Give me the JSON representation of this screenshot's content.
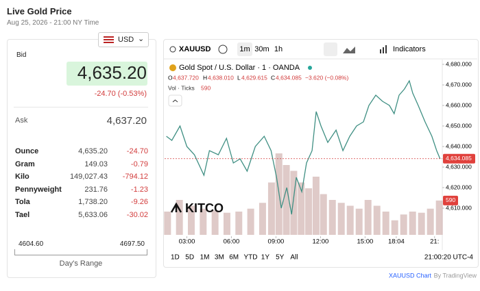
{
  "header": {
    "title": "Live Gold Price",
    "date": "Aug 25, 2026 - 21:00 NY Time"
  },
  "currency": "USD",
  "quote": {
    "bid_label": "Bid",
    "bid": "4,635.20",
    "change": "-24.70 (-0.53%)",
    "ask_label": "Ask",
    "ask": "4,637.20"
  },
  "table": {
    "rows": [
      [
        "Ounce",
        "4,635.20",
        "-24.70"
      ],
      [
        "Gram",
        "149.03",
        "-0.79"
      ],
      [
        "Kilo",
        "149,027.43",
        "-794.12"
      ],
      [
        "Pennyweight",
        "231.76",
        "-1.23"
      ],
      [
        "Tola",
        "1,738.20",
        "-9.26"
      ],
      [
        "Tael",
        "5,633.06",
        "-30.02"
      ]
    ]
  },
  "range": {
    "low": "4604.60",
    "high": "4697.50",
    "label": "Day's Range"
  },
  "toolbar": {
    "symbol": "XAUUSD",
    "intervals": [
      "1m",
      "30m",
      "1h"
    ],
    "indicators": "Indicators"
  },
  "legend": {
    "name": "Gold Spot / U.S. Dollar · 1 · OANDA",
    "o_label": "O",
    "o": "4,637.720",
    "h_label": "H",
    "h": "4,638.010",
    "l_label": "L",
    "l": "4,629.615",
    "c_label": "C",
    "c": "4,634.085",
    "change": "−3.620 (−0.08%)",
    "vol_label": "Vol · Ticks",
    "vol": "590"
  },
  "logo": "KITCO",
  "ranges": [
    "1D",
    "5D",
    "1M",
    "3M",
    "6M",
    "YTD",
    "1Y",
    "5Y",
    "All"
  ],
  "clock": "21:00:20 UTC-4",
  "footer": {
    "link": "XAUUSD Chart",
    "by": "By TradingView"
  },
  "chart_data": {
    "type": "line",
    "color": "#3f8f83",
    "x": [
      1.62,
      1.99,
      2.54,
      3.0,
      3.51,
      4.15,
      4.52,
      5.12,
      5.67,
      6.13,
      6.59,
      7.06,
      7.61,
      8.21,
      8.67,
      9.04,
      9.36,
      9.73,
      10.05,
      10.37,
      10.74,
      11.06,
      11.43,
      11.71,
      12.03,
      12.49,
      13.05,
      13.51,
      13.97,
      14.43,
      14.89,
      15.26,
      15.72,
      16.18,
      16.64,
      16.96,
      17.29,
      17.65,
      17.98,
      18.21,
      18.58,
      19.04,
      19.5,
      19.82,
      20.05
    ],
    "values": [
      4645,
      4643,
      4650,
      4640,
      4636,
      4626,
      4638,
      4636,
      4644,
      4632,
      4634,
      4628,
      4640,
      4645,
      4638,
      4625,
      4610,
      4620,
      4607,
      4625,
      4618,
      4632,
      4638,
      4657,
      4650,
      4642,
      4648,
      4638,
      4645,
      4650,
      4652,
      4660,
      4665,
      4662,
      4660,
      4656,
      4665,
      4668,
      4672,
      4666,
      4660,
      4652,
      4645,
      4638,
      4634
    ],
    "xlim": [
      1.5,
      20.2
    ],
    "xticks": [
      {
        "value": 3,
        "label": "03:00"
      },
      {
        "value": 6,
        "label": "06:00"
      },
      {
        "value": 9,
        "label": "09:00"
      },
      {
        "value": 12,
        "label": "12:00"
      },
      {
        "value": 15,
        "label": "15:00"
      },
      {
        "value": 17.1,
        "label": "18:04"
      },
      {
        "value": 19.68,
        "label": "21:"
      }
    ],
    "ylim": [
      4597,
      4682
    ],
    "yticks": [
      {
        "value": 4610,
        "label": "4,610.000"
      },
      {
        "value": 4620,
        "label": "4,620.000"
      },
      {
        "value": 4630,
        "label": "4,630.000"
      },
      {
        "value": 4640,
        "label": "4,640.000"
      },
      {
        "value": 4650,
        "label": "4,650.000"
      },
      {
        "value": 4660,
        "label": "4,660.000"
      },
      {
        "value": 4670,
        "label": "4,670.000"
      },
      {
        "value": 4680,
        "label": "4,680.000"
      }
    ],
    "last_price": 4634.085,
    "last_price_label": "4,634.085",
    "volume": {
      "color": "#c9a7a3",
      "x": [
        1.7,
        2.5,
        3.3,
        4.1,
        4.9,
        5.7,
        6.5,
        7.3,
        8.1,
        8.7,
        9.2,
        9.7,
        10.2,
        10.7,
        11.2,
        11.7,
        12.2,
        12.8,
        13.4,
        14.0,
        14.6,
        15.2,
        15.8,
        16.4,
        17.0,
        17.6,
        18.2,
        18.8,
        19.4,
        20.0
      ],
      "values": [
        400,
        600,
        500,
        450,
        420,
        380,
        400,
        450,
        550,
        900,
        1400,
        1200,
        1100,
        900,
        800,
        1000,
        700,
        600,
        550,
        500,
        450,
        600,
        500,
        400,
        250,
        350,
        400,
        380,
        450,
        590
      ],
      "y2lim": [
        0,
        3000
      ],
      "last_label": "590"
    }
  }
}
